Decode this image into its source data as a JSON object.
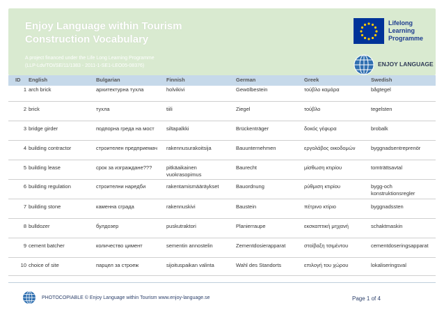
{
  "header": {
    "title_line1": "Enjoy Language within Tourism",
    "title_line2": "Construction Vocabulary",
    "subtitle_line1": "A project financed under the Life Long Learning Programme",
    "subtitle_line2": "(LLP-Ldv/TOI/SE/11/1383 - 2011-1-SE1-LEO05-08376)",
    "colors": {
      "banner": "#d9ead0",
      "table_header": "#c6d9ea",
      "eu_blue": "#003399",
      "eu_star": "#ffcc00"
    }
  },
  "eu_logo": {
    "line1": "Lifelong",
    "line2": "Learning",
    "line3": "Programme",
    "icon": "eu-flag-icon"
  },
  "enjoy_logo": {
    "text": "ENJOY LANGUAGE",
    "icon": "globe-icon"
  },
  "table": {
    "headers": [
      "ID",
      "English",
      "Bulgarian",
      "Finnish",
      "German",
      "Greek",
      "Swedish"
    ],
    "rows": [
      {
        "id": "1",
        "en": "arch brick",
        "bg": "архитектурна тухла",
        "fi": "holvikivi",
        "de": "Gewölbestein",
        "el": "τούβλο καμάρα",
        "sv": "bågtegel"
      },
      {
        "id": "2",
        "en": "brick",
        "bg": "тухла",
        "fi": "tiili",
        "de": "Ziegel",
        "el": "τούβλο",
        "sv": "tegelsten"
      },
      {
        "id": "3",
        "en": "bridge girder",
        "bg": "подпорна греда на мост",
        "fi": "siltapalkki",
        "de": "Brückenträger",
        "el": "δοκός γέφυρα",
        "sv": "brobalk"
      },
      {
        "id": "4",
        "en": "building contractor",
        "bg": "строителен предприемач",
        "fi": "rakennusurakoitsija",
        "de": "Bauunternehmen",
        "el": "εργολάβος οικοδομών",
        "sv": "byggnadsentreprenör"
      },
      {
        "id": "5",
        "en": "building lease",
        "bg": "срок за изграждане???",
        "fi": "pitkäaikainen vuokrasopimus",
        "de": "Baurecht",
        "el": "μίσθωση κτιρίου",
        "sv": "tomträttsavtal"
      },
      {
        "id": "6",
        "en": "building regulation",
        "bg": "строителни наредби",
        "fi": "rakentamismääräykset",
        "de": "Bauordnung",
        "el": "ρύθμιση κτιρίου",
        "sv": "bygg-och konstruktionsregler"
      },
      {
        "id": "7",
        "en": "building stone",
        "bg": "каменна сграда",
        "fi": "rakennuskivi",
        "de": "Baustein",
        "el": "πέτρινο κτίριο",
        "sv": "byggnadssten"
      },
      {
        "id": "8",
        "en": "bulldozer",
        "bg": "булдозер",
        "fi": "puskutraktori",
        "de": "Planierraupe",
        "el": "εκσκαπτική μηχανή",
        "sv": "schaktmaskin"
      },
      {
        "id": "9",
        "en": "cement batcher",
        "bg": "количество цимент",
        "fi": "sementin annostelin",
        "de": "Zementdosierapparat",
        "el": "στοίβαξη τσιμέντου",
        "sv": "cementdoseringsapparat"
      },
      {
        "id": "10",
        "en": "choice of site",
        "bg": "парцел за строеж",
        "fi": "sijoituspaikan valinta",
        "de": "Wahl des Standorts",
        "el": "επιλογή του χώρου",
        "sv": "lokaliseringsval"
      }
    ]
  },
  "footer": {
    "text": "PHOTOCOPIABLE © Enjoy Language within Tourism www.enjoy-language.se",
    "page": "Page 1 of 4",
    "icon": "globe-icon"
  }
}
